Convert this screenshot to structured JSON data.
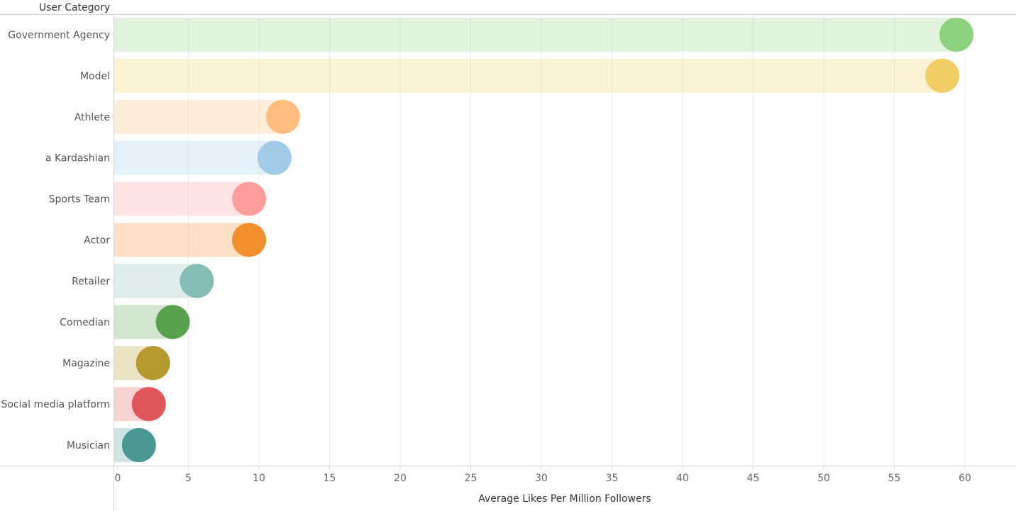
{
  "chart_data": {
    "type": "bar",
    "header": "User Category",
    "xlabel": "Average Likes Per Million Followers",
    "xlim": [
      0,
      63.5
    ],
    "xticks": [
      0,
      5,
      10,
      15,
      20,
      25,
      30,
      35,
      40,
      45,
      50,
      55,
      60
    ],
    "grid": true,
    "categories": [
      "Government Agency",
      "Model",
      "Athlete",
      "a Kardashian",
      "Sports Team",
      "Actor",
      "Retailer",
      "Comedian",
      "Magazine",
      "Social media platform",
      "Musician"
    ],
    "values": [
      59.4,
      58.4,
      11.7,
      11.1,
      9.3,
      9.3,
      5.6,
      3.9,
      2.5,
      2.2,
      1.5
    ],
    "colors": [
      "#8cd17d",
      "#f1ce63",
      "#ffbe7d",
      "#a0cbe8",
      "#ff9d9a",
      "#f28e2b",
      "#86bcb6",
      "#59a14f",
      "#b6992d",
      "#e15759",
      "#499894"
    ]
  }
}
